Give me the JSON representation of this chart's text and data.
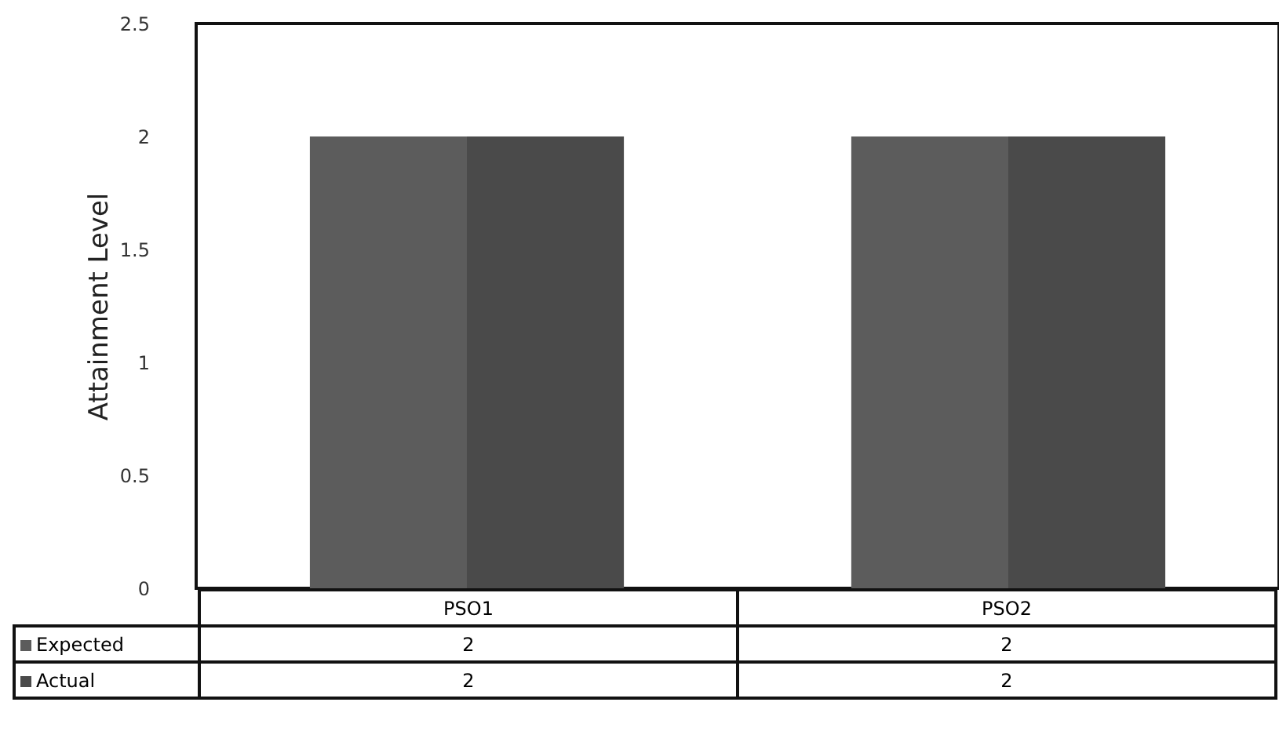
{
  "chart_data": {
    "type": "bar",
    "ylabel": "Attainment Level",
    "categories": [
      "PSO1",
      "PSO2"
    ],
    "series": [
      {
        "name": "Expected",
        "color": "#5c5c5c",
        "values": [
          2,
          2
        ]
      },
      {
        "name": "Actual",
        "color": "#4a4a4a",
        "values": [
          2,
          2
        ]
      }
    ],
    "ylim": [
      0,
      2.5
    ],
    "yticks": [
      0,
      0.5,
      1,
      1.5,
      2,
      2.5
    ],
    "grid": false,
    "legend": "bottom left",
    "data_labels": true
  }
}
